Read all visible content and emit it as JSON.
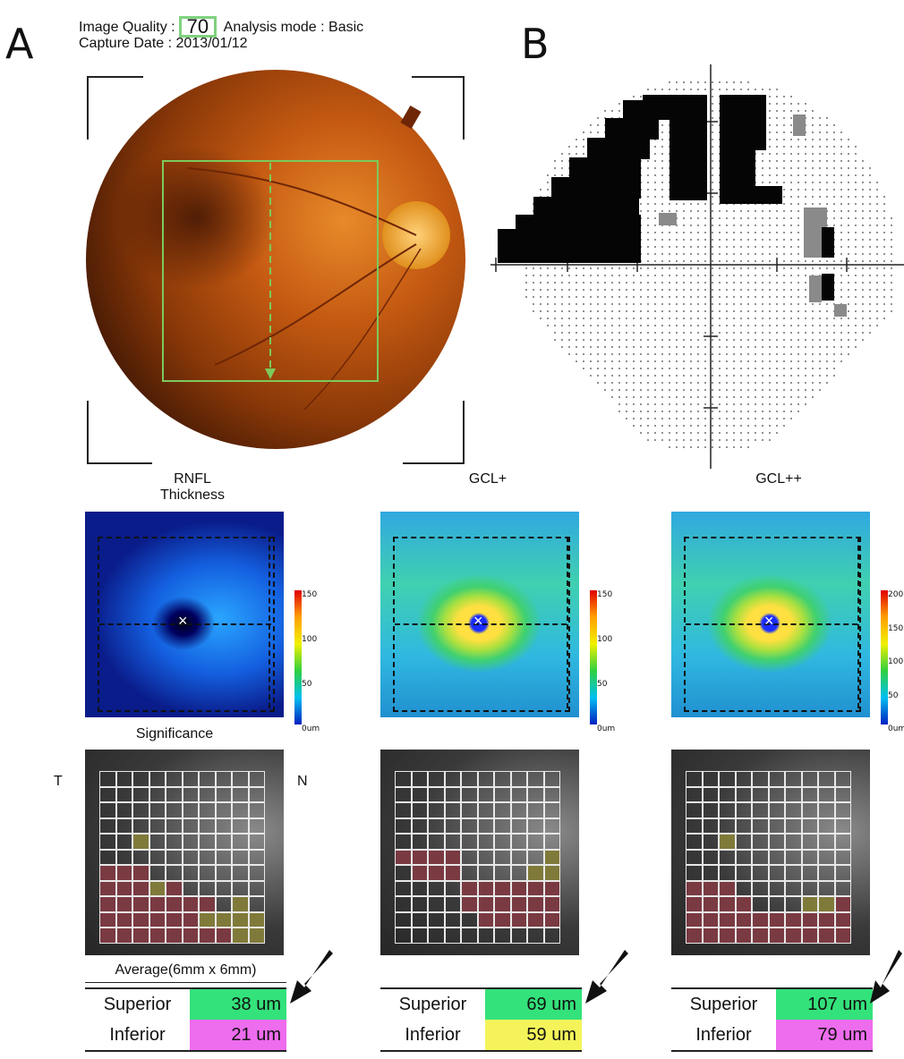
{
  "panel_a_label": "A",
  "panel_b_label": "B",
  "header": {
    "image_quality_label": "Image Quality :",
    "image_quality_value": "70",
    "analysis_mode": "Analysis mode : Basic",
    "capture_date": "Capture Date : 2013/01/12"
  },
  "columns": [
    {
      "title": "RNFL",
      "subtitle": "Thickness",
      "scale": [
        "150",
        "100",
        "50",
        "0um"
      ],
      "superior_label": "Superior",
      "superior_value": "38 um",
      "superior_color": "#33e27a",
      "inferior_label": "Inferior",
      "inferior_value": "21 um",
      "inferior_color": "#ee6cee"
    },
    {
      "title": "GCL+",
      "subtitle": "",
      "scale": [
        "150",
        "100",
        "50",
        "0um"
      ],
      "superior_label": "Superior",
      "superior_value": "69 um",
      "superior_color": "#33e27a",
      "inferior_label": "Inferior",
      "inferior_value": "59 um",
      "inferior_color": "#f4f45a"
    },
    {
      "title": "GCL++",
      "subtitle": "",
      "scale": [
        "200",
        "150",
        "100",
        "50",
        "0um"
      ],
      "superior_label": "Superior",
      "superior_value": "107 um",
      "superior_color": "#33e27a",
      "inferior_label": "Inferior",
      "inferior_value": "79 um",
      "inferior_color": "#ee6cee"
    }
  ],
  "significance_label": "Significance",
  "average_label": "Average(6mm x 6mm)",
  "temporal_label": "T",
  "nasal_label": "N",
  "sig_colors": {
    "normal": "#3b3b3b",
    "red": "#7a3a42",
    "yellow": "#807a3a"
  }
}
